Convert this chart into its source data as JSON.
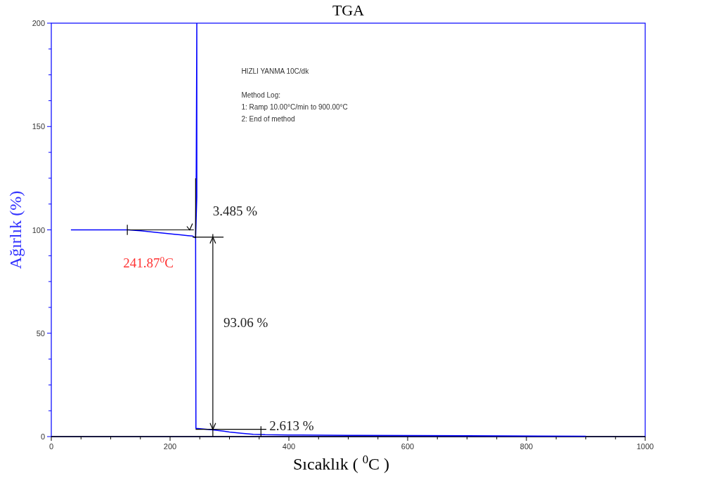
{
  "chart_data": {
    "type": "line",
    "title": "TGA",
    "xlabel": "Sıcaklık ( $^{0}$C )",
    "ylabel": "Ağırlık (%)",
    "series": [
      {
        "color": "#0000ff",
        "x": [
          33,
          130,
          150,
          170,
          190,
          210,
          230,
          238,
          241,
          243,
          245,
          245,
          244,
          243,
          243.5,
          250,
          270,
          290,
          300,
          320,
          340,
          360,
          400,
          420,
          500,
          700,
          900
        ],
        "values": [
          100,
          100,
          99.6,
          99,
          98.4,
          97.8,
          97.2,
          97,
          96.5,
          96,
          116,
          200,
          127,
          96,
          4,
          3.8,
          3.3,
          2.6,
          2.2,
          1.6,
          1.1,
          0.9,
          0.8,
          0.8,
          0.6,
          0.4,
          0.2
        ]
      }
    ],
    "xlim": [
      0,
      1000
    ],
    "ylim": [
      0,
      200
    ],
    "xticks": [
      0,
      {
        "value": 50,
        "label": null
      },
      {
        "value": 100,
        "label": null
      },
      {
        "value": 150,
        "label": null
      },
      200,
      {
        "value": 250,
        "label": null
      },
      {
        "value": 300,
        "label": null
      },
      {
        "value": 350,
        "label": null
      },
      400,
      {
        "value": 450,
        "label": null
      },
      {
        "value": 500,
        "label": null
      },
      {
        "value": 550,
        "label": null
      },
      600,
      {
        "value": 650,
        "label": null
      },
      {
        "value": 700,
        "label": null
      },
      {
        "value": 750,
        "label": null
      },
      800,
      {
        "value": 850,
        "label": null
      },
      {
        "value": 900,
        "label": null
      },
      {
        "value": 950,
        "label": null
      },
      1000
    ],
    "yticks": [
      0,
      {
        "value": 12.5,
        "label": null
      },
      {
        "value": 25,
        "label": null
      },
      {
        "value": 37.5,
        "label": null
      },
      50,
      {
        "value": 62.5,
        "label": null
      },
      {
        "value": 75,
        "label": null
      },
      {
        "value": 87.5,
        "label": null
      },
      100,
      {
        "value": 112.5,
        "label": null
      },
      {
        "value": 125,
        "label": null
      },
      {
        "value": 137.5,
        "label": null
      },
      150,
      {
        "value": 162.5,
        "label": null
      },
      {
        "value": 175,
        "label": null
      },
      {
        "value": 187.5,
        "label": null
      },
      200
    ],
    "grid": false,
    "marker": "none",
    "line_style": "solid",
    "annotations": [
      "HIZLI YANMA 10C/dk",
      "Method Log:",
      "1: Ramp 10.00°C/min to 900.00°C",
      "2: End of method",
      "3.485 %",
      "93.06 %",
      {
        "text": "2.613 %",
        "x": 353,
        "y": 0.9
      },
      "241.87$^{0}$C"
    ]
  }
}
